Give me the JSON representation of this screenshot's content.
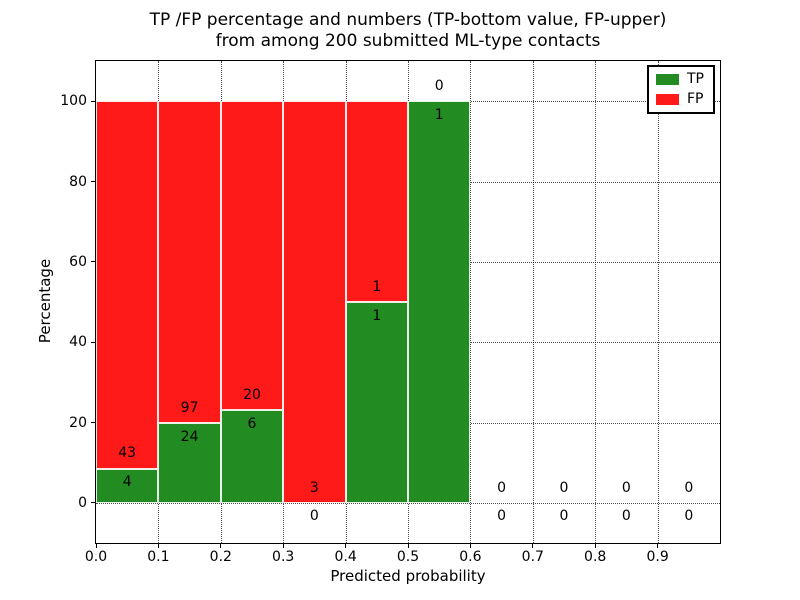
{
  "chart_data": {
    "type": "bar",
    "stacked": true,
    "title": "TP /FP percentage and numbers (TP-bottom value, FP-upper)\nfrom among 200 submitted ML-type contacts",
    "xlabel": "Predicted probability",
    "ylabel": "Percentage",
    "xlim": [
      0.0,
      1.0
    ],
    "ylim": [
      -10,
      110
    ],
    "grid": "dotted",
    "colors": {
      "tp": "#228b22",
      "fp": "#ff1a1a"
    },
    "legend": {
      "position": "upper right",
      "entries": [
        {
          "label": "TP",
          "color": "#228b22"
        },
        {
          "label": "FP",
          "color": "#ff1a1a"
        }
      ]
    },
    "x_ticks": [
      {
        "label": "0.0",
        "value": 0.0
      },
      {
        "label": "0.1",
        "value": 0.1
      },
      {
        "label": "0.2",
        "value": 0.2
      },
      {
        "label": "0.3",
        "value": 0.3
      },
      {
        "label": "0.4",
        "value": 0.4
      },
      {
        "label": "0.5",
        "value": 0.5
      },
      {
        "label": "0.6",
        "value": 0.6
      },
      {
        "label": "0.7",
        "value": 0.7
      },
      {
        "label": "0.8",
        "value": 0.8
      },
      {
        "label": "0.9",
        "value": 0.9
      }
    ],
    "y_ticks": [
      {
        "label": "0",
        "value": 0
      },
      {
        "label": "20",
        "value": 20
      },
      {
        "label": "40",
        "value": 40
      },
      {
        "label": "60",
        "value": 60
      },
      {
        "label": "80",
        "value": 80
      },
      {
        "label": "100",
        "value": 100
      }
    ],
    "bins": [
      {
        "range": [
          0.0,
          0.1
        ],
        "tp_count": 4,
        "fp_count": 43,
        "tp_pct": 8.5,
        "fp_pct": 91.5
      },
      {
        "range": [
          0.1,
          0.2
        ],
        "tp_count": 24,
        "fp_count": 97,
        "tp_pct": 19.8,
        "fp_pct": 80.2
      },
      {
        "range": [
          0.2,
          0.3
        ],
        "tp_count": 6,
        "fp_count": 20,
        "tp_pct": 23.1,
        "fp_pct": 76.9
      },
      {
        "range": [
          0.3,
          0.4
        ],
        "tp_count": 0,
        "fp_count": 3,
        "tp_pct": 0,
        "fp_pct": 100
      },
      {
        "range": [
          0.4,
          0.5
        ],
        "tp_count": 1,
        "fp_count": 1,
        "tp_pct": 50,
        "fp_pct": 50
      },
      {
        "range": [
          0.5,
          0.6
        ],
        "tp_count": 1,
        "fp_count": 0,
        "tp_pct": 100,
        "fp_pct": 0
      },
      {
        "range": [
          0.6,
          0.7
        ],
        "tp_count": 0,
        "fp_count": 0,
        "tp_pct": 0,
        "fp_pct": 0
      },
      {
        "range": [
          0.7,
          0.8
        ],
        "tp_count": 0,
        "fp_count": 0,
        "tp_pct": 0,
        "fp_pct": 0
      },
      {
        "range": [
          0.8,
          0.9
        ],
        "tp_count": 0,
        "fp_count": 0,
        "tp_pct": 0,
        "fp_pct": 0
      },
      {
        "range": [
          0.9,
          1.0
        ],
        "tp_count": 0,
        "fp_count": 0,
        "tp_pct": 0,
        "fp_pct": 0
      }
    ]
  }
}
